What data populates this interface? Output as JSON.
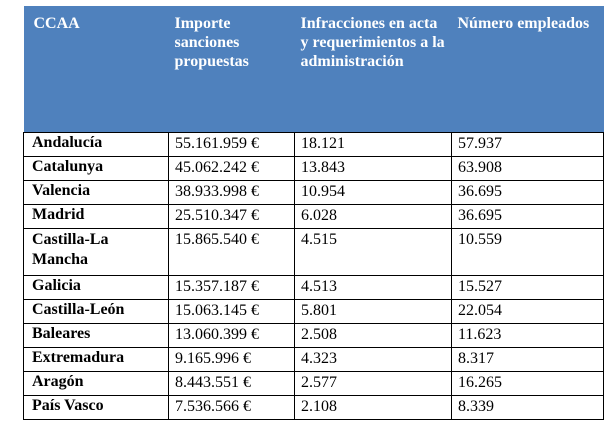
{
  "table": {
    "headers": [
      "CCAA",
      "Importe sanciones propuestas",
      "Infracciones en acta y requerimientos a la administración",
      "Número empleados"
    ],
    "rows": [
      {
        "ccaa": "Andalucía",
        "importe": "55.161.959 €",
        "infracciones": "18.121",
        "empleados": "57.937"
      },
      {
        "ccaa": "Catalunya",
        "importe": "45.062.242 €",
        "infracciones": "13.843",
        "empleados": "63.908"
      },
      {
        "ccaa": "Valencia",
        "importe": "38.933.998 €",
        "infracciones": "10.954",
        "empleados": "36.695"
      },
      {
        "ccaa": "Madrid",
        "importe": "25.510.347 €",
        "infracciones": "6.028",
        "empleados": "36.695"
      },
      {
        "ccaa": "Castilla-La Mancha",
        "importe": "15.865.540 €",
        "infracciones": "4.515",
        "empleados": "10.559"
      },
      {
        "ccaa": "Galicia",
        "importe": "15.357.187 €",
        "infracciones": "4.513",
        "empleados": "15.527"
      },
      {
        "ccaa": "Castilla-León",
        "importe": "15.063.145 €",
        "infracciones": "5.801",
        "empleados": "22.054"
      },
      {
        "ccaa": "Baleares",
        "importe": "13.060.399 €",
        "infracciones": "2.508",
        "empleados": "11.623"
      },
      {
        "ccaa": "Extremadura",
        "importe": "9.165.996 €",
        "infracciones": "4.323",
        "empleados": "8.317"
      },
      {
        "ccaa": "Aragón",
        "importe": "8.443.551 €",
        "infracciones": "2.577",
        "empleados": "16.265"
      },
      {
        "ccaa": "País Vasco",
        "importe": "7.536.566 €",
        "infracciones": "2.108",
        "empleados": "8.339"
      }
    ]
  }
}
